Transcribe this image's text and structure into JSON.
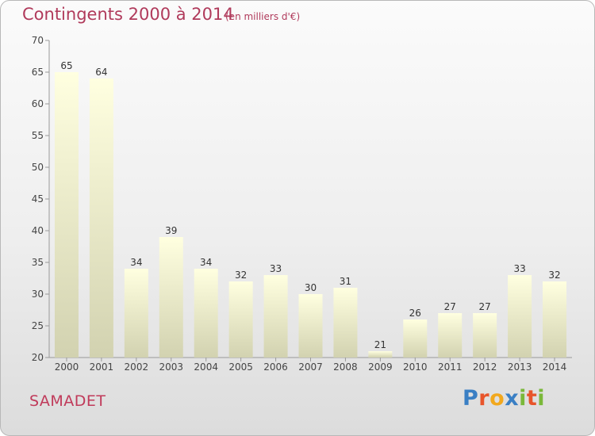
{
  "title": "Contingents 2000 à 2014",
  "subtitle": "(en milliers d'€)",
  "place": "SAMADET",
  "logo": {
    "text": "Proxiti",
    "letters": [
      {
        "char": "P",
        "color": "#3a7fc4"
      },
      {
        "char": "r",
        "color": "#e8552b"
      },
      {
        "char": "o",
        "color": "#f2a81d"
      },
      {
        "char": "x",
        "color": "#3a7fc4"
      },
      {
        "char": "i",
        "color": "#7ab83a"
      },
      {
        "char": "t",
        "color": "#e8552b"
      },
      {
        "char": "i",
        "color": "#7ab83a"
      }
    ]
  },
  "chart_data": {
    "type": "bar",
    "title": "Contingents 2000 à 2014",
    "subtitle": "(en milliers d'€)",
    "categories": [
      "2000",
      "2001",
      "2002",
      "2003",
      "2004",
      "2005",
      "2006",
      "2007",
      "2008",
      "2009",
      "2010",
      "2011",
      "2012",
      "2013",
      "2014"
    ],
    "values": [
      65,
      64,
      34,
      39,
      34,
      32,
      33,
      30,
      31,
      21,
      26,
      27,
      27,
      33,
      32
    ],
    "ylim": [
      20,
      70
    ],
    "yticks": [
      20,
      25,
      30,
      35,
      40,
      45,
      50,
      55,
      60,
      65,
      70
    ],
    "grid": false,
    "bar_color_top": "#ffffe0",
    "bar_color_bottom": "#d2d2b0"
  }
}
